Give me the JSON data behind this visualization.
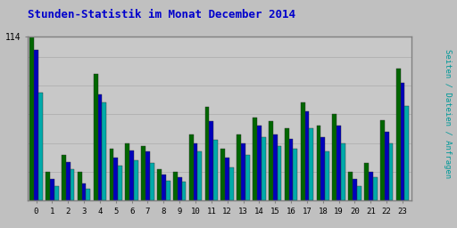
{
  "title": "Stunden-Statistik im Monat December 2014",
  "ylabel_right": "Seiten / Dateien / Anfragen",
  "hours": [
    0,
    1,
    2,
    3,
    4,
    5,
    6,
    7,
    8,
    9,
    10,
    11,
    12,
    13,
    14,
    15,
    16,
    17,
    18,
    19,
    20,
    21,
    22,
    23
  ],
  "seiten": [
    114,
    20,
    32,
    20,
    88,
    36,
    40,
    38,
    22,
    20,
    46,
    65,
    36,
    46,
    58,
    55,
    50,
    68,
    52,
    60,
    20,
    26,
    56,
    92
  ],
  "dateien": [
    105,
    15,
    27,
    12,
    74,
    30,
    35,
    34,
    18,
    16,
    40,
    55,
    30,
    40,
    52,
    46,
    43,
    62,
    44,
    52,
    15,
    20,
    48,
    82
  ],
  "anfragen": [
    75,
    10,
    22,
    8,
    68,
    24,
    28,
    26,
    14,
    13,
    34,
    42,
    23,
    32,
    44,
    38,
    36,
    50,
    34,
    40,
    10,
    16,
    40,
    66
  ],
  "color_seiten": "#006600",
  "color_dateien": "#0000BB",
  "color_anfragen": "#00AAAA",
  "ymax": 114,
  "ytick_label": "114",
  "bg_color": "#C0C0C0",
  "plot_bg": "#C8C8C8",
  "title_color": "#0000CC",
  "right_label_color": "#009999",
  "border_color": "#808080",
  "grid_color": "#B0B0B0"
}
